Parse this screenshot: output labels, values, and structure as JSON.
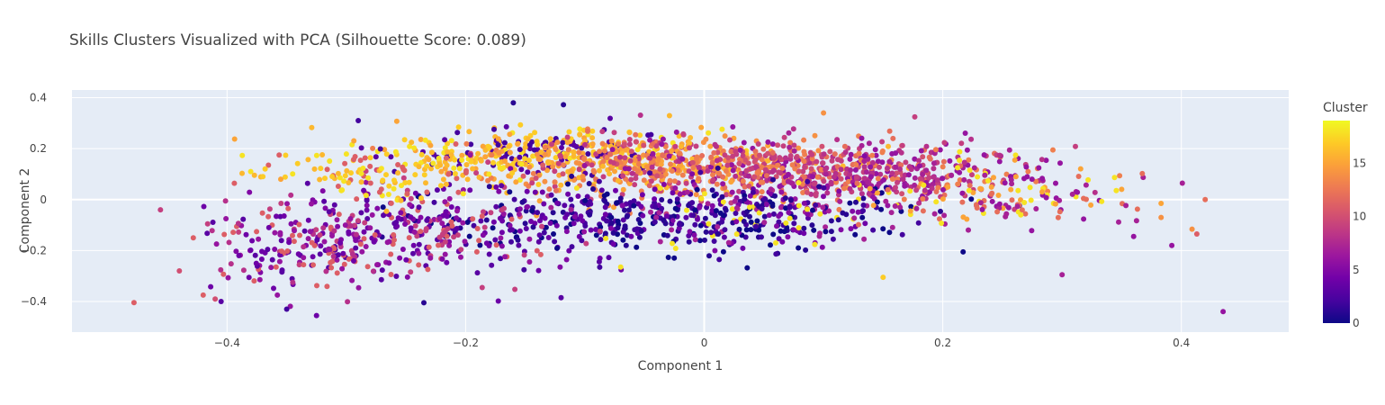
{
  "chart_data": {
    "type": "scatter",
    "title": "Skills Clusters Visualized with PCA (Silhouette Score: 0.089)",
    "xlabel": "Component 1",
    "ylabel": "Component 2",
    "xlim": [
      -0.53,
      0.49
    ],
    "ylim": [
      -0.52,
      0.43
    ],
    "x_ticks": [
      -0.4,
      -0.2,
      0,
      0.2,
      0.4
    ],
    "x_tick_labels": [
      "−0.4",
      "−0.2",
      "0",
      "0.2",
      "0.4"
    ],
    "y_ticks": [
      -0.4,
      -0.2,
      0,
      0.2,
      0.4
    ],
    "y_tick_labels": [
      "−0.4",
      "−0.2",
      "0",
      "0.2",
      "0.4"
    ],
    "grid": true,
    "plot_background": "#e5ecf6",
    "colorbar": {
      "title": "Cluster",
      "min": 0,
      "max": 19,
      "ticks": [
        0,
        5,
        10,
        15
      ],
      "tick_labels": [
        "0",
        "5",
        "10",
        "15"
      ],
      "colorscale": [
        "#0d0887",
        "#46039f",
        "#7201a8",
        "#9c179e",
        "#bd3786",
        "#d8576b",
        "#ed7953",
        "#fb9f3a",
        "#fdca26",
        "#f0f921"
      ]
    },
    "points": [
      {
        "x": -0.478,
        "y": -0.404,
        "cluster": 11
      },
      {
        "x": 0.435,
        "y": -0.44,
        "cluster": 6
      },
      {
        "x": 0.409,
        "y": -0.116,
        "cluster": 14
      },
      {
        "x": 0.413,
        "y": -0.135,
        "cluster": 11
      },
      {
        "x": 0.392,
        "y": -0.18,
        "cluster": 6
      },
      {
        "x": 0.383,
        "y": -0.015,
        "cluster": 15
      },
      {
        "x": 0.383,
        "y": -0.07,
        "cluster": 14
      },
      {
        "x": 0.3,
        "y": -0.295,
        "cluster": 7
      },
      {
        "x": 0.1,
        "y": 0.34,
        "cluster": 14
      },
      {
        "x": -0.12,
        "y": -0.385,
        "cluster": 3
      },
      {
        "x": -0.29,
        "y": 0.31,
        "cluster": 2
      },
      {
        "x": -0.42,
        "y": -0.375,
        "cluster": 11
      },
      {
        "x": -0.405,
        "y": -0.4,
        "cluster": 3
      },
      {
        "x": -0.325,
        "y": -0.455,
        "cluster": 4
      },
      {
        "x": -0.235,
        "y": -0.405,
        "cluster": 1
      },
      {
        "x": -0.35,
        "y": -0.43,
        "cluster": 2
      },
      {
        "x": -0.41,
        "y": -0.39,
        "cluster": 10
      },
      {
        "x": -0.44,
        "y": -0.28,
        "cluster": 10
      },
      {
        "x": -0.37,
        "y": 0.09,
        "cluster": 17
      },
      {
        "x": -0.355,
        "y": 0.08,
        "cluster": 15
      },
      {
        "x": -0.16,
        "y": 0.38,
        "cluster": 1
      },
      {
        "x": -0.118,
        "y": 0.372,
        "cluster": 1
      },
      {
        "x": 0.42,
        "y": 0.0,
        "cluster": 12
      },
      {
        "x": 0.35,
        "y": 0.04,
        "cluster": 15
      },
      {
        "x": 0.36,
        "y": -0.145,
        "cluster": 6
      },
      {
        "x": 0.15,
        "y": -0.305,
        "cluster": 17
      },
      {
        "x": -0.07,
        "y": -0.265,
        "cluster": 18
      },
      {
        "x": 0.06,
        "y": -0.17,
        "cluster": 18
      }
    ],
    "synthetic_clouds": [
      {
        "cx": -0.15,
        "cy": 0.18,
        "sx": 0.07,
        "sy": 0.05,
        "n": 320,
        "clusters": [
          16,
          17,
          18,
          15,
          2,
          3
        ]
      },
      {
        "cx": -0.05,
        "cy": 0.14,
        "sx": 0.08,
        "sy": 0.06,
        "n": 420,
        "clusters": [
          13,
          14,
          15,
          16,
          9
        ]
      },
      {
        "cx": 0.07,
        "cy": 0.12,
        "sx": 0.08,
        "sy": 0.06,
        "n": 420,
        "clusters": [
          12,
          13,
          8,
          9,
          10,
          6
        ]
      },
      {
        "cx": 0.16,
        "cy": 0.09,
        "sx": 0.06,
        "sy": 0.06,
        "n": 240,
        "clusters": [
          7,
          8,
          9,
          6,
          13
        ]
      },
      {
        "cx": -0.08,
        "cy": -0.08,
        "sx": 0.09,
        "sy": 0.07,
        "n": 330,
        "clusters": [
          0,
          1,
          2,
          3,
          4
        ]
      },
      {
        "cx": 0.05,
        "cy": -0.06,
        "sx": 0.07,
        "sy": 0.07,
        "n": 240,
        "clusters": [
          0,
          1,
          2,
          5,
          7,
          18
        ]
      },
      {
        "cx": -0.25,
        "cy": -0.12,
        "sx": 0.07,
        "sy": 0.09,
        "n": 300,
        "clusters": [
          3,
          4,
          5,
          6,
          9,
          11
        ]
      },
      {
        "cx": -0.33,
        "cy": -0.2,
        "sx": 0.05,
        "sy": 0.08,
        "n": 130,
        "clusters": [
          3,
          4,
          6,
          11,
          8
        ]
      },
      {
        "cx": 0.25,
        "cy": 0.02,
        "sx": 0.05,
        "sy": 0.06,
        "n": 140,
        "clusters": [
          6,
          7,
          12,
          15,
          18
        ]
      },
      {
        "cx": -0.26,
        "cy": 0.1,
        "sx": 0.05,
        "sy": 0.05,
        "n": 120,
        "clusters": [
          16,
          17,
          18,
          11
        ]
      }
    ]
  }
}
